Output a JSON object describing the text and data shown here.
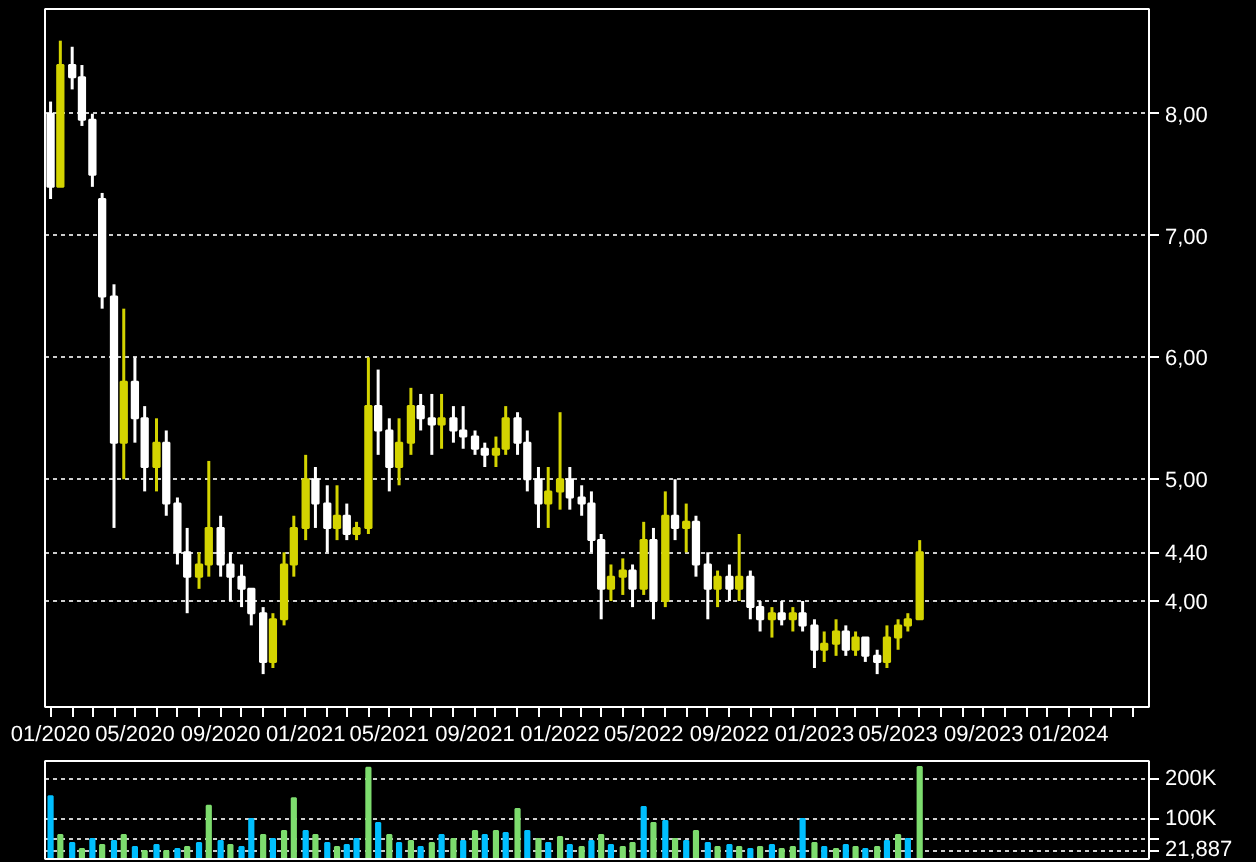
{
  "chart_data": [
    {
      "type": "candlestick",
      "x": [
        "2020-01-01",
        "2020-01-15",
        "2020-02-01",
        "2020-02-15",
        "2020-03-01",
        "2020-03-15",
        "2020-04-01",
        "2020-04-15",
        "2020-05-01",
        "2020-05-15",
        "2020-06-01",
        "2020-06-15",
        "2020-07-01",
        "2020-07-15",
        "2020-08-01",
        "2020-08-15",
        "2020-09-01",
        "2020-09-15",
        "2020-10-01",
        "2020-10-15",
        "2020-11-01",
        "2020-11-15",
        "2020-12-01",
        "2020-12-15",
        "2021-01-01",
        "2021-01-15",
        "2021-02-01",
        "2021-02-15",
        "2021-03-01",
        "2021-03-15",
        "2021-04-01",
        "2021-04-15",
        "2021-05-01",
        "2021-05-15",
        "2021-06-01",
        "2021-06-15",
        "2021-07-01",
        "2021-07-15",
        "2021-08-01",
        "2021-08-15",
        "2021-09-01",
        "2021-09-15",
        "2021-10-01",
        "2021-10-15",
        "2021-11-01",
        "2021-11-15",
        "2021-12-01",
        "2021-12-15",
        "2022-01-01",
        "2022-01-15",
        "2022-02-01",
        "2022-02-15",
        "2022-03-01",
        "2022-03-15",
        "2022-04-01",
        "2022-04-15",
        "2022-05-01",
        "2022-05-15",
        "2022-06-01",
        "2022-06-15",
        "2022-07-01",
        "2022-07-15",
        "2022-08-01",
        "2022-08-15",
        "2022-09-01",
        "2022-09-15",
        "2022-10-01",
        "2022-10-15",
        "2022-11-01",
        "2022-11-15",
        "2022-12-01",
        "2022-12-15",
        "2023-01-01",
        "2023-01-15",
        "2023-02-01",
        "2023-02-15",
        "2023-03-01",
        "2023-03-15",
        "2023-04-01",
        "2023-04-15",
        "2023-05-01",
        "2023-05-15",
        "2023-06-01"
      ],
      "ohlc": [
        [
          8.0,
          8.1,
          7.3,
          7.4
        ],
        [
          7.4,
          8.6,
          7.4,
          8.4
        ],
        [
          8.4,
          8.55,
          8.2,
          8.3
        ],
        [
          8.3,
          8.4,
          7.9,
          7.95
        ],
        [
          7.95,
          8.0,
          7.4,
          7.5
        ],
        [
          7.3,
          7.35,
          6.4,
          6.5
        ],
        [
          6.5,
          6.6,
          4.6,
          5.3
        ],
        [
          5.3,
          6.4,
          5.0,
          5.8
        ],
        [
          5.8,
          6.0,
          5.3,
          5.5
        ],
        [
          5.5,
          5.6,
          4.9,
          5.1
        ],
        [
          5.1,
          5.5,
          4.9,
          5.3
        ],
        [
          5.3,
          5.4,
          4.7,
          4.8
        ],
        [
          4.8,
          4.85,
          4.3,
          4.4
        ],
        [
          4.4,
          4.6,
          3.9,
          4.2
        ],
        [
          4.2,
          4.4,
          4.1,
          4.3
        ],
        [
          4.3,
          5.15,
          4.2,
          4.6
        ],
        [
          4.6,
          4.7,
          4.2,
          4.3
        ],
        [
          4.3,
          4.4,
          4.0,
          4.2
        ],
        [
          4.2,
          4.3,
          3.95,
          4.1
        ],
        [
          4.1,
          4.1,
          3.8,
          3.9
        ],
        [
          3.9,
          3.95,
          3.4,
          3.5
        ],
        [
          3.5,
          3.9,
          3.45,
          3.85
        ],
        [
          3.85,
          4.4,
          3.8,
          4.3
        ],
        [
          4.3,
          4.7,
          4.2,
          4.6
        ],
        [
          4.6,
          5.2,
          4.5,
          5.0
        ],
        [
          5.0,
          5.1,
          4.6,
          4.8
        ],
        [
          4.8,
          4.95,
          4.4,
          4.6
        ],
        [
          4.6,
          4.95,
          4.5,
          4.7
        ],
        [
          4.7,
          4.8,
          4.5,
          4.55
        ],
        [
          4.55,
          4.65,
          4.5,
          4.6
        ],
        [
          4.6,
          6.0,
          4.55,
          5.6
        ],
        [
          5.6,
          5.9,
          5.2,
          5.4
        ],
        [
          5.4,
          5.5,
          4.9,
          5.1
        ],
        [
          5.1,
          5.5,
          4.95,
          5.3
        ],
        [
          5.3,
          5.75,
          5.2,
          5.6
        ],
        [
          5.6,
          5.7,
          5.4,
          5.5
        ],
        [
          5.5,
          5.7,
          5.2,
          5.45
        ],
        [
          5.45,
          5.7,
          5.25,
          5.5
        ],
        [
          5.5,
          5.6,
          5.3,
          5.4
        ],
        [
          5.4,
          5.6,
          5.25,
          5.35
        ],
        [
          5.35,
          5.4,
          5.2,
          5.25
        ],
        [
          5.25,
          5.3,
          5.1,
          5.2
        ],
        [
          5.2,
          5.35,
          5.1,
          5.25
        ],
        [
          5.25,
          5.6,
          5.2,
          5.5
        ],
        [
          5.5,
          5.55,
          5.2,
          5.3
        ],
        [
          5.3,
          5.4,
          4.9,
          5.0
        ],
        [
          5.0,
          5.1,
          4.6,
          4.8
        ],
        [
          4.8,
          5.1,
          4.6,
          4.9
        ],
        [
          4.9,
          5.55,
          4.75,
          5.0
        ],
        [
          5.0,
          5.1,
          4.75,
          4.85
        ],
        [
          4.85,
          4.95,
          4.7,
          4.8
        ],
        [
          4.8,
          4.9,
          4.4,
          4.5
        ],
        [
          4.5,
          4.55,
          3.85,
          4.1
        ],
        [
          4.1,
          4.3,
          4.0,
          4.2
        ],
        [
          4.2,
          4.35,
          4.05,
          4.25
        ],
        [
          4.25,
          4.3,
          3.95,
          4.1
        ],
        [
          4.1,
          4.65,
          4.05,
          4.5
        ],
        [
          4.5,
          4.6,
          3.85,
          4.0
        ],
        [
          4.0,
          4.9,
          3.95,
          4.7
        ],
        [
          4.7,
          5.0,
          4.5,
          4.6
        ],
        [
          4.6,
          4.8,
          4.4,
          4.65
        ],
        [
          4.65,
          4.7,
          4.2,
          4.3
        ],
        [
          4.3,
          4.4,
          3.85,
          4.1
        ],
        [
          4.1,
          4.25,
          3.95,
          4.2
        ],
        [
          4.2,
          4.3,
          4.0,
          4.1
        ],
        [
          4.1,
          4.55,
          4.0,
          4.2
        ],
        [
          4.2,
          4.25,
          3.85,
          3.95
        ],
        [
          3.95,
          4.0,
          3.75,
          3.85
        ],
        [
          3.85,
          3.95,
          3.7,
          3.9
        ],
        [
          3.9,
          4.0,
          3.8,
          3.85
        ],
        [
          3.85,
          3.95,
          3.75,
          3.9
        ],
        [
          3.9,
          4.0,
          3.75,
          3.8
        ],
        [
          3.8,
          3.85,
          3.45,
          3.6
        ],
        [
          3.6,
          3.75,
          3.5,
          3.65
        ],
        [
          3.65,
          3.85,
          3.55,
          3.75
        ],
        [
          3.75,
          3.8,
          3.55,
          3.6
        ],
        [
          3.6,
          3.75,
          3.55,
          3.7
        ],
        [
          3.7,
          3.7,
          3.5,
          3.55
        ],
        [
          3.55,
          3.6,
          3.4,
          3.5
        ],
        [
          3.5,
          3.8,
          3.45,
          3.7
        ],
        [
          3.7,
          3.85,
          3.6,
          3.8
        ],
        [
          3.8,
          3.9,
          3.75,
          3.85
        ],
        [
          3.85,
          4.5,
          3.85,
          4.4
        ]
      ],
      "colors": [
        "#ffffff",
        "#d4d400",
        "#ffffff",
        "#ffffff",
        "#ffffff",
        "#ffffff",
        "#ffffff",
        "#d4d400",
        "#ffffff",
        "#ffffff",
        "#d4d400",
        "#ffffff",
        "#ffffff",
        "#ffffff",
        "#d4d400",
        "#d4d400",
        "#ffffff",
        "#ffffff",
        "#ffffff",
        "#ffffff",
        "#ffffff",
        "#d4d400",
        "#d4d400",
        "#d4d400",
        "#d4d400",
        "#ffffff",
        "#ffffff",
        "#d4d400",
        "#ffffff",
        "#d4d400",
        "#d4d400",
        "#ffffff",
        "#ffffff",
        "#d4d400",
        "#d4d400",
        "#ffffff",
        "#ffffff",
        "#d4d400",
        "#ffffff",
        "#ffffff",
        "#ffffff",
        "#ffffff",
        "#d4d400",
        "#d4d400",
        "#ffffff",
        "#ffffff",
        "#ffffff",
        "#d4d400",
        "#d4d400",
        "#ffffff",
        "#ffffff",
        "#ffffff",
        "#ffffff",
        "#d4d400",
        "#d4d400",
        "#ffffff",
        "#d4d400",
        "#ffffff",
        "#d4d400",
        "#ffffff",
        "#d4d400",
        "#ffffff",
        "#ffffff",
        "#d4d400",
        "#ffffff",
        "#d4d400",
        "#ffffff",
        "#ffffff",
        "#d4d400",
        "#ffffff",
        "#d4d400",
        "#ffffff",
        "#ffffff",
        "#d4d400",
        "#d4d400",
        "#ffffff",
        "#d4d400",
        "#ffffff",
        "#ffffff",
        "#d4d400",
        "#d4d400",
        "#d4d400",
        "#d4d400"
      ],
      "xlim": [
        "2019-12-24",
        "2024-04-25"
      ],
      "xticks": [
        {
          "value": "2020-01",
          "label": "01/2020"
        },
        {
          "value": "2020-02",
          "label": null
        },
        {
          "value": "2020-03",
          "label": null
        },
        {
          "value": "2020-04",
          "label": null
        },
        {
          "value": "2020-05",
          "label": "05/2020"
        },
        {
          "value": "2020-06",
          "label": null
        },
        {
          "value": "2020-07",
          "label": null
        },
        {
          "value": "2020-08",
          "label": null
        },
        {
          "value": "2020-09",
          "label": "09/2020"
        },
        {
          "value": "2020-10",
          "label": null
        },
        {
          "value": "2020-11",
          "label": null
        },
        {
          "value": "2020-12",
          "label": null
        },
        {
          "value": "2021-01",
          "label": "01/2021"
        },
        {
          "value": "2021-02",
          "label": null
        },
        {
          "value": "2021-03",
          "label": null
        },
        {
          "value": "2021-04",
          "label": null
        },
        {
          "value": "2021-05",
          "label": "05/2021"
        },
        {
          "value": "2021-06",
          "label": null
        },
        {
          "value": "2021-07",
          "label": null
        },
        {
          "value": "2021-08",
          "label": null
        },
        {
          "value": "2021-09",
          "label": "09/2021"
        },
        {
          "value": "2021-10",
          "label": null
        },
        {
          "value": "2021-11",
          "label": null
        },
        {
          "value": "2021-12",
          "label": null
        },
        {
          "value": "2022-01",
          "label": "01/2022"
        },
        {
          "value": "2022-02",
          "label": null
        },
        {
          "value": "2022-03",
          "label": null
        },
        {
          "value": "2022-04",
          "label": null
        },
        {
          "value": "2022-05",
          "label": "05/2022"
        },
        {
          "value": "2022-06",
          "label": null
        },
        {
          "value": "2022-07",
          "label": null
        },
        {
          "value": "2022-08",
          "label": null
        },
        {
          "value": "2022-09",
          "label": "09/2022"
        },
        {
          "value": "2022-10",
          "label": null
        },
        {
          "value": "2022-11",
          "label": null
        },
        {
          "value": "2022-12",
          "label": null
        },
        {
          "value": "2023-01",
          "label": "01/2023"
        },
        {
          "value": "2023-02",
          "label": null
        },
        {
          "value": "2023-03",
          "label": null
        },
        {
          "value": "2023-04",
          "label": null
        },
        {
          "value": "2023-05",
          "label": "05/2023"
        },
        {
          "value": "2023-06",
          "label": null
        },
        {
          "value": "2023-07",
          "label": null
        },
        {
          "value": "2023-08",
          "label": null
        },
        {
          "value": "2023-09",
          "label": "09/2023"
        },
        {
          "value": "2023-10",
          "label": null
        },
        {
          "value": "2023-11",
          "label": null
        },
        {
          "value": "2023-12",
          "label": null
        },
        {
          "value": "2024-01",
          "label": "01/2024"
        },
        {
          "value": "2024-02",
          "label": null
        },
        {
          "value": "2024-03",
          "label": null
        },
        {
          "value": "2024-04",
          "label": null
        }
      ],
      "ylim": [
        3.13,
        8.86
      ],
      "yticks": [
        {
          "value": 4,
          "label": "4,00"
        },
        {
          "value": 4.4,
          "label": "4,40"
        },
        {
          "value": 5,
          "label": "5,00"
        },
        {
          "value": 6,
          "label": "6,00"
        },
        {
          "value": 7,
          "label": "7,00"
        },
        {
          "value": 8,
          "label": "8,00"
        }
      ],
      "grid": "y"
    },
    {
      "type": "bar",
      "x": [
        "2020-01-01",
        "2020-01-15",
        "2020-02-01",
        "2020-02-15",
        "2020-03-01",
        "2020-03-15",
        "2020-04-01",
        "2020-04-15",
        "2020-05-01",
        "2020-05-15",
        "2020-06-01",
        "2020-06-15",
        "2020-07-01",
        "2020-07-15",
        "2020-08-01",
        "2020-08-15",
        "2020-09-01",
        "2020-09-15",
        "2020-10-01",
        "2020-10-15",
        "2020-11-01",
        "2020-11-15",
        "2020-12-01",
        "2020-12-15",
        "2021-01-01",
        "2021-01-15",
        "2021-02-01",
        "2021-02-15",
        "2021-03-01",
        "2021-03-15",
        "2021-04-01",
        "2021-04-15",
        "2021-05-01",
        "2021-05-15",
        "2021-06-01",
        "2021-06-15",
        "2021-07-01",
        "2021-07-15",
        "2021-08-01",
        "2021-08-15",
        "2021-09-01",
        "2021-09-15",
        "2021-10-01",
        "2021-10-15",
        "2021-11-01",
        "2021-11-15",
        "2021-12-01",
        "2021-12-15",
        "2022-01-01",
        "2022-01-15",
        "2022-02-01",
        "2022-02-15",
        "2022-03-01",
        "2022-03-15",
        "2022-04-01",
        "2022-04-15",
        "2022-05-01",
        "2022-05-15",
        "2022-06-01",
        "2022-06-15",
        "2022-07-01",
        "2022-07-15",
        "2022-08-01",
        "2022-08-15",
        "2022-09-01",
        "2022-09-15",
        "2022-10-01",
        "2022-10-15",
        "2022-11-01",
        "2022-11-15",
        "2022-12-01",
        "2022-12-15",
        "2023-01-01",
        "2023-01-15",
        "2023-02-01",
        "2023-02-15",
        "2023-03-01",
        "2023-03-15",
        "2023-04-01",
        "2023-04-15",
        "2023-05-01",
        "2023-05-15",
        "2023-06-01"
      ],
      "values": [
        157000,
        60000,
        40000,
        25000,
        50000,
        35000,
        45000,
        60000,
        30000,
        20000,
        35000,
        20000,
        25000,
        30000,
        40000,
        133000,
        45000,
        35000,
        30000,
        100000,
        60000,
        50000,
        70000,
        152000,
        70000,
        60000,
        40000,
        30000,
        35000,
        50000,
        228000,
        90000,
        60000,
        40000,
        45000,
        30000,
        40000,
        60000,
        50000,
        45000,
        70000,
        60000,
        70000,
        65000,
        125000,
        70000,
        50000,
        40000,
        55000,
        35000,
        30000,
        45000,
        60000,
        35000,
        30000,
        40000,
        130000,
        90000,
        95000,
        50000,
        45000,
        70000,
        40000,
        30000,
        35000,
        30000,
        25000,
        30000,
        35000,
        25000,
        30000,
        100000,
        40000,
        30000,
        25000,
        35000,
        30000,
        25000,
        30000,
        45000,
        60000,
        50000,
        230000
      ],
      "colors": [
        "#00bfff",
        "#7ddc6e",
        "#00bfff",
        "#7ddc6e",
        "#00bfff",
        "#7ddc6e",
        "#00bfff",
        "#7ddc6e",
        "#00bfff",
        "#7ddc6e",
        "#00bfff",
        "#7ddc6e",
        "#00bfff",
        "#7ddc6e",
        "#00bfff",
        "#7ddc6e",
        "#00bfff",
        "#7ddc6e",
        "#00bfff",
        "#00bfff",
        "#7ddc6e",
        "#00bfff",
        "#7ddc6e",
        "#7ddc6e",
        "#00bfff",
        "#7ddc6e",
        "#00bfff",
        "#7ddc6e",
        "#00bfff",
        "#00bfff",
        "#7ddc6e",
        "#00bfff",
        "#7ddc6e",
        "#00bfff",
        "#7ddc6e",
        "#00bfff",
        "#7ddc6e",
        "#00bfff",
        "#7ddc6e",
        "#00bfff",
        "#7ddc6e",
        "#00bfff",
        "#7ddc6e",
        "#00bfff",
        "#7ddc6e",
        "#00bfff",
        "#7ddc6e",
        "#00bfff",
        "#7ddc6e",
        "#00bfff",
        "#7ddc6e",
        "#00bfff",
        "#7ddc6e",
        "#00bfff",
        "#7ddc6e",
        "#7ddc6e",
        "#00bfff",
        "#7ddc6e",
        "#00bfff",
        "#7ddc6e",
        "#00bfff",
        "#7ddc6e",
        "#00bfff",
        "#7ddc6e",
        "#00bfff",
        "#7ddc6e",
        "#00bfff",
        "#7ddc6e",
        "#00bfff",
        "#7ddc6e",
        "#7ddc6e",
        "#00bfff",
        "#7ddc6e",
        "#00bfff",
        "#7ddc6e",
        "#00bfff",
        "#7ddc6e",
        "#00bfff",
        "#7ddc6e",
        "#00bfff",
        "#7ddc6e",
        "#00bfff",
        "#7ddc6e"
      ],
      "xlim": [
        "2019-12-24",
        "2024-04-25"
      ],
      "ylim": [
        0,
        245000
      ],
      "yticks": [
        {
          "value": 21887,
          "label": "21,887"
        },
        {
          "value": 50000,
          "label": null
        },
        {
          "value": 100000,
          "label": "100K"
        },
        {
          "value": 200000,
          "label": "200K"
        }
      ],
      "tick_labels": "y",
      "grid": "y"
    }
  ]
}
